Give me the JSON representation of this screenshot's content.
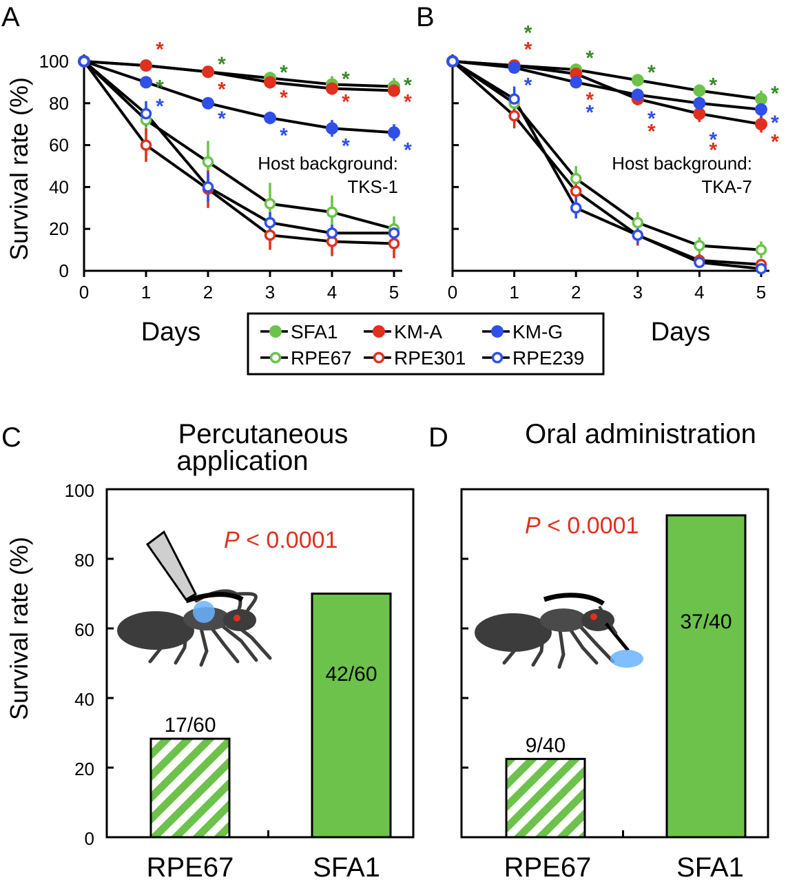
{
  "colors": {
    "SFA1": "#6cc24a",
    "KM-A": "#e0301e",
    "KM-G": "#2f4fe8",
    "RPE67": "#6cc24a",
    "RPE301": "#e0301e",
    "RPE239": "#2f4fe8",
    "star_green": "#3a8a2a",
    "star_red": "#e0301e",
    "star_blue": "#2f4fe8",
    "bar_green": "#6cc24a",
    "pval": "#e0301e"
  },
  "legend": {
    "items": [
      {
        "name": "SFA1",
        "filled": true
      },
      {
        "name": "KM-A",
        "filled": true
      },
      {
        "name": "KM-G",
        "filled": true
      },
      {
        "name": "RPE67",
        "filled": false
      },
      {
        "name": "RPE301",
        "filled": false
      },
      {
        "name": "RPE239",
        "filled": false
      }
    ]
  },
  "chart_data": [
    {
      "panel": "A",
      "type": "line",
      "xlabel": "Days",
      "ylabel": "Survival rate (%)",
      "x": [
        0,
        1,
        2,
        3,
        4,
        5
      ],
      "xticks": [
        "0",
        "1",
        "2",
        "3",
        "4",
        "5"
      ],
      "yticks": [
        "0",
        "20",
        "40",
        "60",
        "80",
        "100"
      ],
      "ylim": [
        0,
        100
      ],
      "annotation_line1": "Host background:",
      "annotation_line2": "TKS-1",
      "series": [
        {
          "name": "SFA1",
          "filled": true,
          "values": [
            100,
            98,
            95,
            92,
            89,
            88
          ],
          "err": [
            0,
            1,
            1,
            3,
            4,
            4
          ]
        },
        {
          "name": "KM-A",
          "filled": true,
          "values": [
            100,
            98,
            95,
            90,
            87,
            86
          ],
          "err": [
            0,
            1,
            1,
            3,
            3,
            3
          ]
        },
        {
          "name": "KM-G",
          "filled": true,
          "values": [
            100,
            90,
            80,
            73,
            68,
            66
          ],
          "err": [
            0,
            2,
            2,
            3,
            4,
            4
          ]
        },
        {
          "name": "RPE67",
          "filled": false,
          "values": [
            100,
            72,
            52,
            32,
            28,
            20
          ],
          "err": [
            0,
            7,
            10,
            10,
            8,
            6
          ]
        },
        {
          "name": "RPE301",
          "filled": false,
          "values": [
            100,
            60,
            39,
            17,
            14,
            13
          ],
          "err": [
            0,
            8,
            9,
            7,
            7,
            7
          ]
        },
        {
          "name": "RPE239",
          "filled": false,
          "values": [
            100,
            75,
            40,
            23,
            18,
            18
          ],
          "err": [
            0,
            6,
            7,
            5,
            4,
            4
          ]
        }
      ],
      "stars": [
        {
          "x": 1,
          "y": 107,
          "color": "star_red"
        },
        {
          "x": 1,
          "y": 89,
          "color": "star_green"
        },
        {
          "x": 1,
          "y": 80,
          "color": "star_blue"
        },
        {
          "x": 2,
          "y": 100,
          "color": "star_green"
        },
        {
          "x": 2,
          "y": 88,
          "color": "star_red"
        },
        {
          "x": 2,
          "y": 74,
          "color": "star_blue"
        },
        {
          "x": 3,
          "y": 96,
          "color": "star_green"
        },
        {
          "x": 3,
          "y": 84,
          "color": "star_red"
        },
        {
          "x": 3,
          "y": 66,
          "color": "star_blue"
        },
        {
          "x": 4,
          "y": 93,
          "color": "star_green"
        },
        {
          "x": 4,
          "y": 82,
          "color": "star_red"
        },
        {
          "x": 4,
          "y": 61,
          "color": "star_blue"
        },
        {
          "x": 5,
          "y": 90,
          "color": "star_green"
        },
        {
          "x": 5,
          "y": 82,
          "color": "star_red"
        },
        {
          "x": 5,
          "y": 59,
          "color": "star_blue"
        }
      ]
    },
    {
      "panel": "B",
      "type": "line",
      "xlabel": "Days",
      "ylabel": "",
      "x": [
        0,
        1,
        2,
        3,
        4,
        5
      ],
      "xticks": [
        "0",
        "1",
        "2",
        "3",
        "4",
        "5"
      ],
      "ylim": [
        0,
        100
      ],
      "annotation_line1": "Host background:",
      "annotation_line2": "TKA-7",
      "series": [
        {
          "name": "SFA1",
          "filled": true,
          "values": [
            100,
            98,
            96,
            91,
            86,
            82
          ],
          "err": [
            0,
            1,
            1,
            3,
            3,
            4
          ]
        },
        {
          "name": "KM-A",
          "filled": true,
          "values": [
            100,
            98,
            94,
            82,
            75,
            70
          ],
          "err": [
            0,
            1,
            2,
            3,
            4,
            4
          ]
        },
        {
          "name": "KM-G",
          "filled": true,
          "values": [
            100,
            97,
            90,
            84,
            80,
            77
          ],
          "err": [
            0,
            1,
            2,
            3,
            3,
            4
          ]
        },
        {
          "name": "RPE67",
          "filled": false,
          "values": [
            100,
            80,
            44,
            23,
            12,
            10
          ],
          "err": [
            0,
            5,
            6,
            5,
            4,
            4
          ]
        },
        {
          "name": "RPE301",
          "filled": false,
          "values": [
            100,
            74,
            38,
            17,
            5,
            3
          ],
          "err": [
            0,
            6,
            6,
            5,
            3,
            2
          ]
        },
        {
          "name": "RPE239",
          "filled": false,
          "values": [
            100,
            82,
            30,
            17,
            4,
            1
          ],
          "err": [
            0,
            6,
            5,
            4,
            2,
            1
          ]
        }
      ],
      "stars": [
        {
          "x": 1,
          "y": 115,
          "color": "star_green"
        },
        {
          "x": 1,
          "y": 107,
          "color": "star_red"
        },
        {
          "x": 1,
          "y": 90,
          "color": "star_blue"
        },
        {
          "x": 2,
          "y": 103,
          "color": "star_green"
        },
        {
          "x": 2,
          "y": 83,
          "color": "star_red"
        },
        {
          "x": 2,
          "y": 77,
          "color": "star_blue"
        },
        {
          "x": 3,
          "y": 96,
          "color": "star_green"
        },
        {
          "x": 3,
          "y": 74,
          "color": "star_blue"
        },
        {
          "x": 3,
          "y": 68,
          "color": "star_red"
        },
        {
          "x": 4,
          "y": 90,
          "color": "star_green"
        },
        {
          "x": 4,
          "y": 64,
          "color": "star_blue"
        },
        {
          "x": 4,
          "y": 59,
          "color": "star_red"
        },
        {
          "x": 5,
          "y": 86,
          "color": "star_green"
        },
        {
          "x": 5,
          "y": 72,
          "color": "star_blue"
        },
        {
          "x": 5,
          "y": 63,
          "color": "star_red"
        }
      ]
    },
    {
      "panel": "C",
      "type": "bar",
      "title_line1": "Percutaneous",
      "title_line2": "application",
      "ylabel": "Survival rate (%)",
      "yticks": [
        "0",
        "20",
        "40",
        "60",
        "80",
        "100"
      ],
      "ylim": [
        0,
        100
      ],
      "categories": [
        "RPE67",
        "SFA1"
      ],
      "values": [
        28.3,
        70.0
      ],
      "bar_labels": [
        "17/60",
        "42/60"
      ],
      "hatched": [
        true,
        false
      ],
      "p_prefix": "P",
      "p_rest": " < 0.0001"
    },
    {
      "panel": "D",
      "type": "bar",
      "title_line1": "Oral administration",
      "ylim": [
        0,
        100
      ],
      "categories": [
        "RPE67",
        "SFA1"
      ],
      "values": [
        22.5,
        92.5
      ],
      "bar_labels": [
        "9/40",
        "37/40"
      ],
      "hatched": [
        true,
        false
      ],
      "p_prefix": "P",
      "p_rest": " < 0.0001"
    }
  ]
}
